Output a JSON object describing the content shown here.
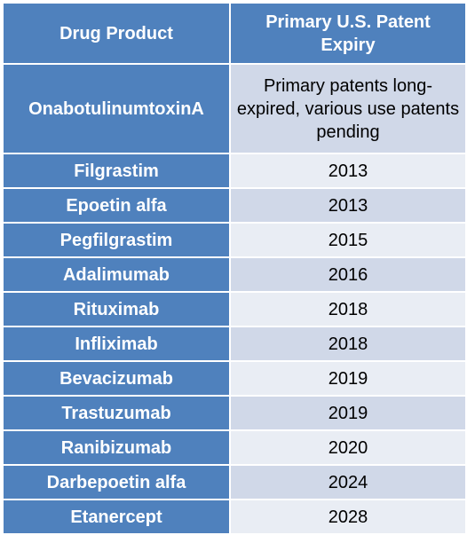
{
  "table": {
    "headers": {
      "drug_product": "Drug Product",
      "primary_expiry": "Primary U.S. Patent Expiry"
    },
    "rows": [
      {
        "drug": "OnabotulinumtoxinA",
        "expiry": "Primary patents long-expired, various use patents pending"
      },
      {
        "drug": "Filgrastim",
        "expiry": "2013"
      },
      {
        "drug": "Epoetin alfa",
        "expiry": "2013"
      },
      {
        "drug": "Pegfilgrastim",
        "expiry": "2015"
      },
      {
        "drug": "Adalimumab",
        "expiry": "2016"
      },
      {
        "drug": "Rituximab",
        "expiry": "2018"
      },
      {
        "drug": "Infliximab",
        "expiry": "2018"
      },
      {
        "drug": "Bevacizumab",
        "expiry": "2019"
      },
      {
        "drug": "Trastuzumab",
        "expiry": "2019"
      },
      {
        "drug": "Ranibizumab",
        "expiry": "2020"
      },
      {
        "drug": "Darbepoetin alfa",
        "expiry": "2024"
      },
      {
        "drug": "Etanercept",
        "expiry": "2028"
      }
    ]
  },
  "colors": {
    "header_background": "#4f81bd",
    "header_text": "#ffffff",
    "row_band_dark": "#d0d8e8",
    "row_band_light": "#e9edf4",
    "cell_text": "#000000"
  }
}
